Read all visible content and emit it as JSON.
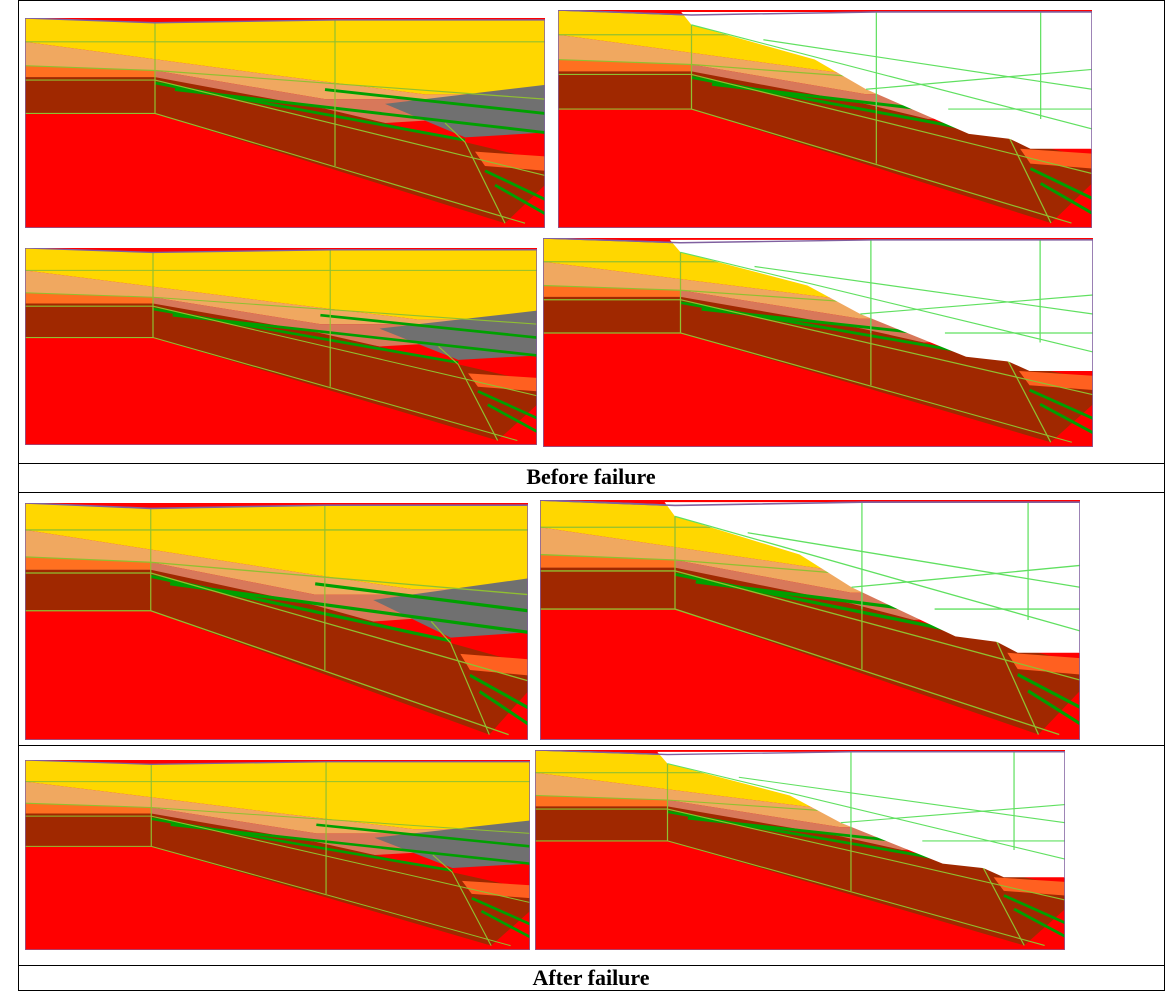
{
  "captions": [
    "Before failure",
    "After failure"
  ]
}
